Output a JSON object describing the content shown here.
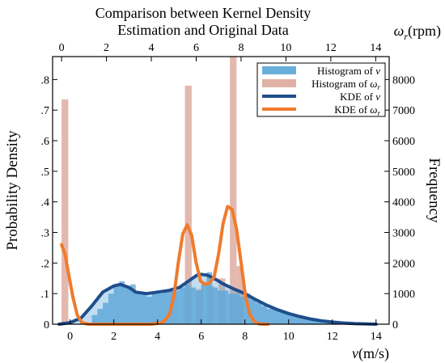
{
  "chart_data": {
    "type": "bar",
    "title": [
      "Comparison between Kernel Density",
      "Estimation and Original Data"
    ],
    "ylabel_left": "Probability Density",
    "ylabel_right": "Frequency",
    "xlabel_bottom": {
      "sym": "v",
      "unit": "(m/s)"
    },
    "xlabel_top": {
      "sym": "ω",
      "sub": "r",
      "unit": "(rpm)"
    },
    "x_bottom": {
      "lim": [
        -0.8,
        14.6
      ],
      "ticks": [
        0,
        2,
        4,
        6,
        8,
        10,
        12,
        14
      ]
    },
    "x_top": {
      "lim": [
        -0.4,
        14.6
      ],
      "ticks": [
        0,
        2,
        4,
        6,
        8,
        10,
        12,
        14
      ]
    },
    "y_left": {
      "lim": [
        0,
        0.875
      ],
      "ticks": [
        0,
        0.1,
        0.2,
        0.3,
        0.4,
        0.5,
        0.6,
        0.7,
        0.8
      ]
    },
    "y_right": {
      "lim": [
        0,
        8750
      ],
      "ticks": [
        0,
        1000,
        2000,
        3000,
        4000,
        5000,
        6000,
        7000,
        8000
      ]
    },
    "grid": false,
    "legend_position": "top-right",
    "legend": [
      {
        "kind": "patch",
        "color": "#6aaedb",
        "text": "Histogram of ",
        "sym": "v",
        "sub": ""
      },
      {
        "kind": "patch",
        "color": "#e0b1a5",
        "text": "Histogram of ",
        "sym": "ω",
        "sub": "r"
      },
      {
        "kind": "line",
        "color": "#1f4e8c",
        "text": "KDE of ",
        "sym": "v",
        "sub": ""
      },
      {
        "kind": "line",
        "color": "#f07b2d",
        "text": "KDE of ",
        "sym": "ω",
        "sub": "r"
      }
    ],
    "series": [
      {
        "kind": "histogram",
        "axis": "bottom-left",
        "bin_width": 0.25,
        "color": "#6aaedb",
        "x_left": [
          1.0,
          1.25,
          1.5,
          1.75,
          2.0,
          2.25,
          2.5,
          2.75,
          3.0,
          3.25,
          3.5,
          3.75,
          4.0,
          4.25,
          4.5,
          4.75,
          5.0,
          5.25,
          5.5,
          5.75,
          6.0,
          6.25,
          6.5,
          6.75,
          7.0,
          7.25,
          7.5,
          7.75,
          8.0,
          8.25,
          8.5,
          8.75,
          9.0,
          9.25,
          9.5,
          9.75,
          10.0,
          10.25,
          10.5,
          10.75,
          11.0,
          11.25,
          11.5,
          11.75,
          12.0
        ],
        "values": [
          0.03,
          0.05,
          0.07,
          0.1,
          0.13,
          0.14,
          0.12,
          0.13,
          0.1,
          0.1,
          0.09,
          0.1,
          0.1,
          0.11,
          0.11,
          0.11,
          0.12,
          0.13,
          0.12,
          0.11,
          0.13,
          0.17,
          0.12,
          0.11,
          0.11,
          0.1,
          0.1,
          0.09,
          0.1,
          0.08,
          0.07,
          0.06,
          0.05,
          0.05,
          0.04,
          0.04,
          0.03,
          0.03,
          0.02,
          0.02,
          0.02,
          0.01,
          0.01,
          0.01,
          0.005
        ]
      },
      {
        "kind": "histogram",
        "axis": "top-right",
        "bin_width": 0.3,
        "color": "#e0b1a5",
        "x_left": [
          0.0,
          5.5,
          7.5,
          7.8,
          6.0,
          6.5,
          7.0
        ],
        "values": [
          7350,
          7800,
          8750,
          1900,
          1150,
          1250,
          1500
        ]
      },
      {
        "name": "KDE of v",
        "kind": "line",
        "axis": "bottom-left",
        "color": "#1f4e8c",
        "x": [
          -0.5,
          0.0,
          0.5,
          1.0,
          1.5,
          2.0,
          2.3,
          2.7,
          3.0,
          3.5,
          4.0,
          4.5,
          5.0,
          5.5,
          5.8,
          6.0,
          6.3,
          6.7,
          7.0,
          7.5,
          8.0,
          8.5,
          9.0,
          9.5,
          10.0,
          10.5,
          11.0,
          11.5,
          12.0,
          12.5,
          13.0,
          13.5,
          14.0
        ],
        "y": [
          0.0,
          0.005,
          0.02,
          0.06,
          0.105,
          0.125,
          0.13,
          0.12,
          0.105,
          0.1,
          0.105,
          0.11,
          0.12,
          0.145,
          0.16,
          0.163,
          0.16,
          0.145,
          0.132,
          0.115,
          0.1,
          0.08,
          0.062,
          0.047,
          0.035,
          0.025,
          0.017,
          0.011,
          0.007,
          0.004,
          0.002,
          0.001,
          0.0
        ]
      },
      {
        "name": "KDE of ωr",
        "kind": "line",
        "axis": "top-right",
        "color": "#f07b2d",
        "x": [
          0.0,
          0.15,
          0.3,
          0.5,
          0.7,
          0.9,
          1.2,
          2.0,
          3.0,
          4.0,
          4.5,
          4.8,
          5.0,
          5.2,
          5.4,
          5.6,
          5.8,
          6.0,
          6.2,
          6.4,
          6.6,
          6.8,
          7.0,
          7.2,
          7.4,
          7.6,
          7.8,
          8.0,
          8.2,
          8.4,
          8.6,
          8.8,
          9.0,
          9.2
        ],
        "y": [
          2600,
          2300,
          1700,
          900,
          300,
          50,
          0,
          0,
          0,
          0,
          50,
          300,
          900,
          2000,
          2950,
          3250,
          2900,
          2000,
          1400,
          1300,
          1350,
          1550,
          2300,
          3300,
          3850,
          3750,
          3100,
          2000,
          900,
          300,
          80,
          10,
          0,
          0
        ]
      }
    ]
  }
}
